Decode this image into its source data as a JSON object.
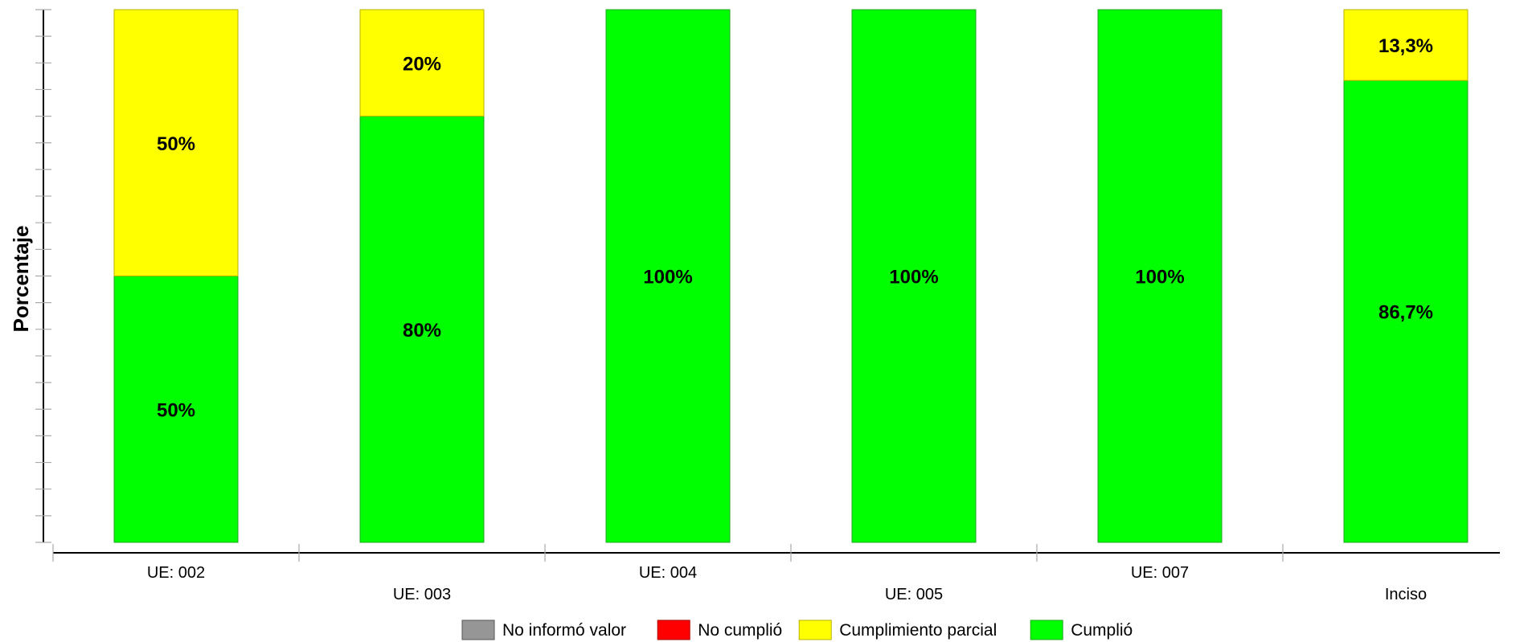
{
  "chart_data": {
    "type": "bar",
    "stacked": true,
    "ylabel": "Porcentaje",
    "xlabel": "",
    "ylim": [
      0,
      100
    ],
    "grid": false,
    "legend_position": "bottom",
    "categories": [
      "UE: 002",
      "UE: 003",
      "UE: 004",
      "UE: 005",
      "UE: 007",
      "Inciso"
    ],
    "series": [
      {
        "name": "No informó valor",
        "color": "#969696",
        "values": [
          0,
          0,
          0,
          0,
          0,
          0
        ],
        "labels": [
          "",
          "",
          "",
          "",
          "",
          ""
        ]
      },
      {
        "name": "No cumplió",
        "color": "#ff0000",
        "values": [
          0,
          0,
          0,
          0,
          0,
          0
        ],
        "labels": [
          "",
          "",
          "",
          "",
          "",
          ""
        ]
      },
      {
        "name": "Cumplimiento parcial",
        "color": "#ffff00",
        "values": [
          50,
          20,
          0,
          0,
          0,
          13.3
        ],
        "labels": [
          "50%",
          "20%",
          "",
          "",
          "",
          "13,3%"
        ]
      },
      {
        "name": "Cumplió",
        "color": "#00ff00",
        "values": [
          50,
          80,
          100,
          100,
          100,
          86.7
        ],
        "labels": [
          "50%",
          "80%",
          "100%",
          "100%",
          "100%",
          "86,7%"
        ]
      }
    ]
  }
}
